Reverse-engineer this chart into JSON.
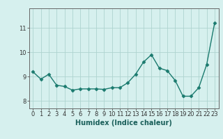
{
  "x": [
    0,
    1,
    2,
    3,
    4,
    5,
    6,
    7,
    8,
    9,
    10,
    11,
    12,
    13,
    14,
    15,
    16,
    17,
    18,
    19,
    20,
    21,
    22,
    23
  ],
  "y": [
    9.2,
    8.9,
    9.1,
    8.65,
    8.6,
    8.45,
    8.5,
    8.5,
    8.5,
    8.48,
    8.55,
    8.55,
    8.75,
    9.1,
    9.6,
    9.9,
    9.35,
    9.25,
    8.85,
    8.2,
    8.2,
    8.55,
    9.5,
    11.2
  ],
  "line_color": "#1a7a6e",
  "marker": "D",
  "markersize": 2.5,
  "linewidth": 1.0,
  "bg_color": "#d6f0ee",
  "grid_color": "#aed4cf",
  "xlabel": "Humidex (Indice chaleur)",
  "xlabel_fontsize": 7,
  "ylim": [
    7.7,
    11.8
  ],
  "xlim": [
    -0.5,
    23.5
  ],
  "yticks": [
    8,
    9,
    10,
    11
  ],
  "ytick_labels": [
    "8",
    "9",
    "10",
    "11"
  ],
  "xticks": [
    0,
    1,
    2,
    3,
    4,
    5,
    6,
    7,
    8,
    9,
    10,
    11,
    12,
    13,
    14,
    15,
    16,
    17,
    18,
    19,
    20,
    21,
    22,
    23
  ],
  "tick_fontsize": 6,
  "fig_bg": "#d6f0ee",
  "spine_color": "#666666"
}
